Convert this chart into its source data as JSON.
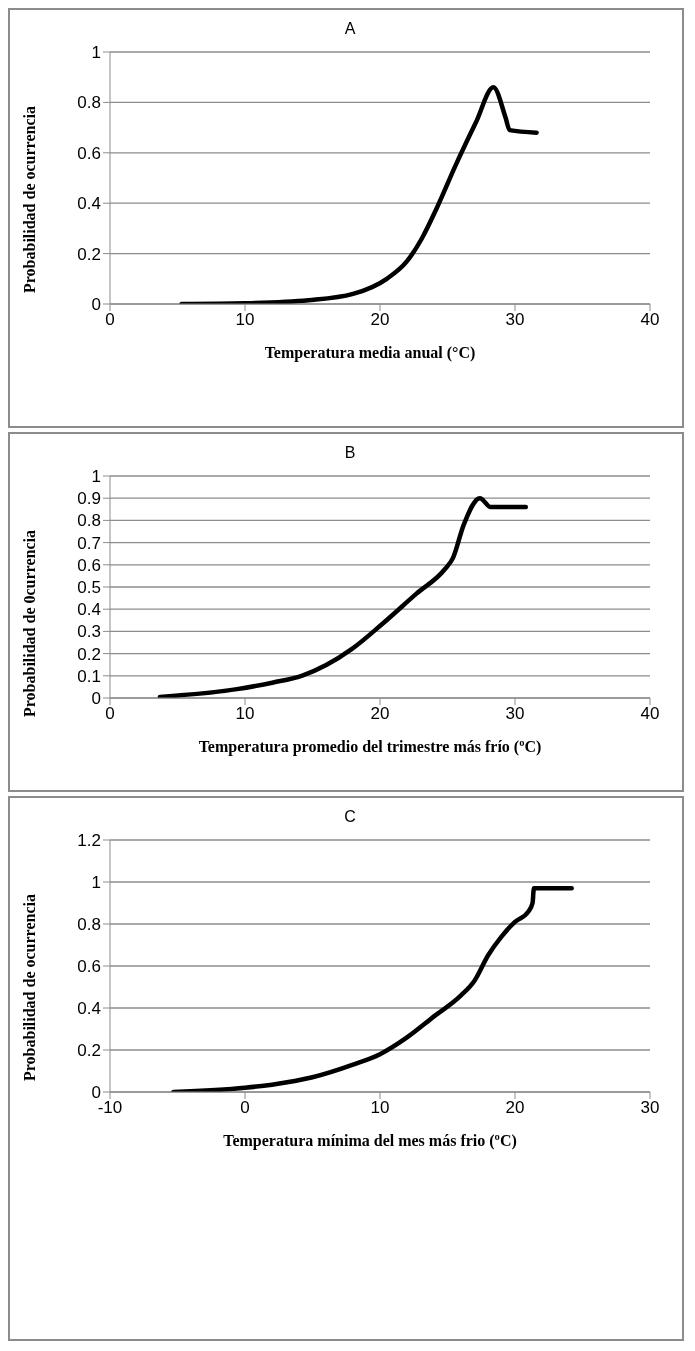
{
  "chart_data": [
    {
      "type": "line",
      "title": "A",
      "xlabel": "Temperatura media anual (°C)",
      "ylabel": "Probabilidad de ocurrencia",
      "color": "#000000",
      "grid": "y",
      "line_style": "solid",
      "x": [
        5.3,
        10,
        14.7,
        18,
        20.5,
        22,
        23.1,
        24.2,
        25.6,
        27.1,
        28.4,
        29.3,
        29.6,
        31.6
      ],
      "values": [
        0,
        0.003,
        0.015,
        0.04,
        0.1,
        0.17,
        0.26,
        0.38,
        0.55,
        0.72,
        0.86,
        0.74,
        0.69,
        0.68
      ],
      "xlim": [
        0,
        40
      ],
      "xticks": [
        0,
        10,
        20,
        30,
        40
      ],
      "ylim": [
        0,
        1
      ],
      "yticks": [
        0,
        0.2,
        0.4,
        0.6,
        0.8,
        1
      ]
    },
    {
      "type": "line",
      "title": "B",
      "xlabel": "Temperatura promedio del trimestre más frío (ºC)",
      "ylabel": "Probabilidad de 0currencia",
      "color": "#000000",
      "grid": "y",
      "line_style": "solid",
      "x": [
        3.7,
        9.4,
        12.1,
        14.2,
        17.9,
        20.1,
        22.7,
        24.8,
        25.4,
        26.2,
        27.4,
        28.2,
        30.8
      ],
      "values": [
        0.005,
        0.04,
        0.07,
        0.1,
        0.22,
        0.33,
        0.47,
        0.58,
        0.63,
        0.78,
        0.9,
        0.86,
        0.86
      ],
      "xlim": [
        0,
        40
      ],
      "xticks": [
        0,
        10,
        20,
        30,
        40
      ],
      "ylim": [
        0,
        1
      ],
      "yticks": [
        0,
        0.1,
        0.2,
        0.3,
        0.4,
        0.5,
        0.6,
        0.7,
        0.8,
        0.9,
        1
      ]
    },
    {
      "type": "line",
      "title": "C",
      "xlabel": "Temperatura mínima del mes más frio (ºC)",
      "ylabel": "Probabilidad de ocurrencia",
      "color": "#000000",
      "grid": "y",
      "line_style": "solid",
      "x": [
        -5.3,
        0,
        2,
        5,
        8,
        10,
        12,
        14,
        16,
        17,
        18,
        19,
        20,
        21,
        21.3,
        21.4,
        24.2
      ],
      "values": [
        0,
        0.02,
        0.035,
        0.07,
        0.13,
        0.18,
        0.26,
        0.36,
        0.46,
        0.53,
        0.65,
        0.74,
        0.81,
        0.86,
        0.9,
        0.97,
        0.97
      ],
      "xlim": [
        -10,
        30
      ],
      "xticks": [
        -10,
        0,
        10,
        20,
        30
      ],
      "ylim": [
        0,
        1.2
      ],
      "yticks": [
        0,
        0.2,
        0.4,
        0.6,
        0.8,
        1,
        1.2
      ]
    }
  ]
}
